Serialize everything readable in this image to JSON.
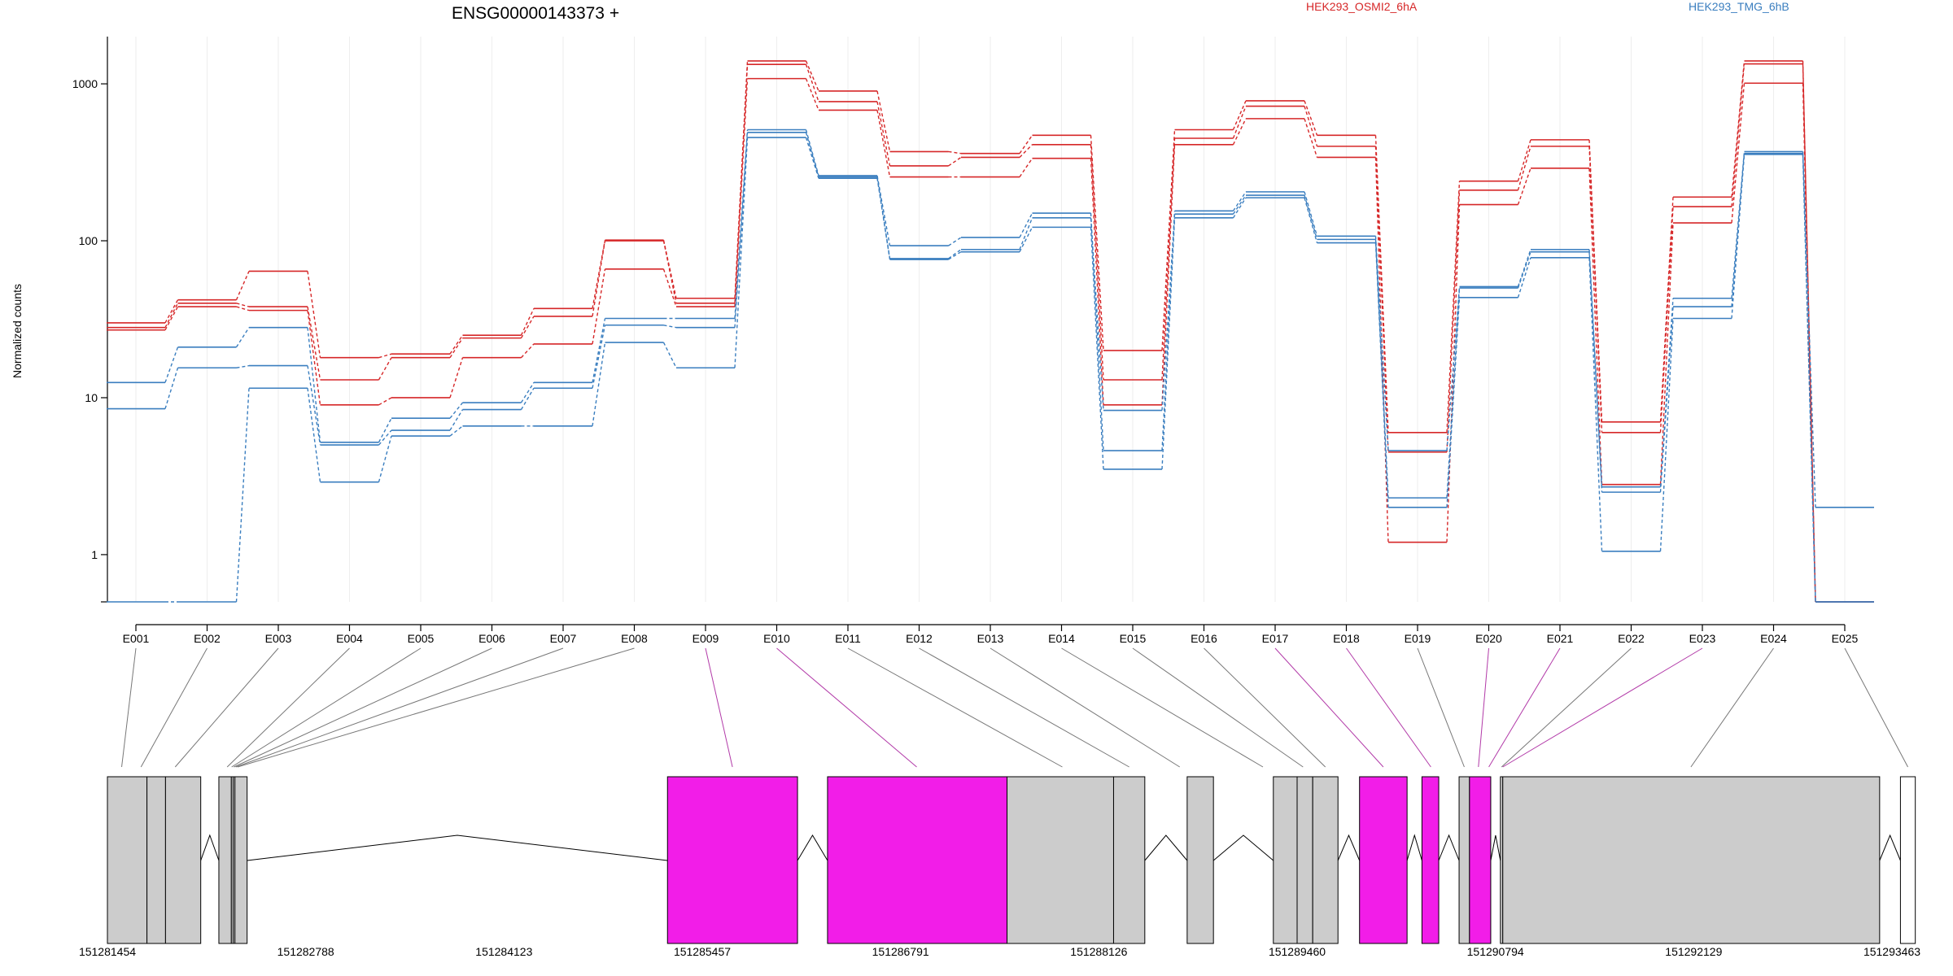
{
  "chart_data": {
    "type": "line",
    "title": "ENSG00000143373 +",
    "ylabel": "Normalized counts",
    "xlabel": "",
    "y_scale": "log",
    "yticks": [
      1,
      10,
      100,
      1000
    ],
    "ylim": [
      0.5,
      2000
    ],
    "grid": "vertical",
    "legend": "top",
    "categories": [
      "E001",
      "E002",
      "E003",
      "E004",
      "E005",
      "E006",
      "E007",
      "E008",
      "E009",
      "E010",
      "E011",
      "E012",
      "E013",
      "E014",
      "E015",
      "E016",
      "E017",
      "E018",
      "E019",
      "E020",
      "E021",
      "E022",
      "E023",
      "E024",
      "E025"
    ],
    "series": [
      {
        "name": "HEK293_OSMI2_6hA",
        "color": "#d62728",
        "style": "solid",
        "values": [
          30,
          42,
          64,
          18,
          19,
          25,
          37,
          101,
          43,
          1400,
          900,
          370,
          360,
          470,
          20,
          510,
          780,
          470,
          6,
          240,
          440,
          7,
          190,
          1400,
          0.5
        ]
      },
      {
        "name": "",
        "color": "#d62728",
        "style": "solid",
        "values": [
          28,
          40,
          38,
          13,
          18,
          24,
          33,
          100,
          40,
          1330,
          770,
          300,
          340,
          410,
          13,
          450,
          720,
          400,
          4.5,
          210,
          400,
          6,
          165,
          1340,
          0.5
        ]
      },
      {
        "name": "",
        "color": "#d62728",
        "style": "solid",
        "values": [
          27,
          38,
          36,
          9,
          10,
          18,
          22,
          66,
          38,
          1080,
          680,
          255,
          255,
          335,
          9,
          410,
          600,
          340,
          1.2,
          170,
          290,
          2.8,
          130,
          1010,
          0.5
        ]
      },
      {
        "name": "HEK293_TMG_6hB",
        "color": "#3a7ebf",
        "style": "solid",
        "values": [
          12.5,
          21,
          28,
          5.2,
          7.4,
          9.3,
          12.5,
          32,
          32,
          510,
          260,
          93,
          105,
          150,
          4.6,
          155,
          205,
          107,
          4.6,
          51,
          88,
          2.7,
          43,
          370,
          2
        ]
      },
      {
        "name": "",
        "color": "#3a7ebf",
        "style": "solid",
        "values": [
          8.5,
          15.5,
          16,
          5,
          6.2,
          8.4,
          11.5,
          29,
          28,
          490,
          255,
          77,
          88,
          140,
          8.3,
          148,
          195,
          102,
          2.3,
          50,
          85,
          2.5,
          38,
          360,
          0.5
        ]
      },
      {
        "name": "",
        "color": "#3a7ebf",
        "style": "solid",
        "values": [
          0.5,
          0.5,
          11.5,
          2.9,
          5.7,
          6.6,
          6.6,
          22.5,
          15.5,
          455,
          250,
          76,
          85,
          122,
          3.5,
          140,
          188,
          97,
          2,
          43.5,
          78,
          1.05,
          32,
          355,
          0.5
        ]
      }
    ],
    "gene_model": {
      "coordinate_ticks": [
        "151281454",
        "151282788",
        "151284123",
        "151285457",
        "151286791",
        "151288126",
        "151289460",
        "151290794",
        "151292129",
        "151293463"
      ],
      "coord_range": [
        151281454,
        151293463
      ],
      "highlight_color": "#f21de8",
      "blocks": [
        {
          "start": 151281454,
          "end": 151281720
        },
        {
          "start": 151281720,
          "end": 151281845
        },
        {
          "start": 151281845,
          "end": 151282082
        },
        {
          "start": 151282204,
          "end": 151282288
        },
        {
          "start": 151282288,
          "end": 151282300
        },
        {
          "start": 151282300,
          "end": 151282312
        },
        {
          "start": 151282312,
          "end": 151282394
        },
        {
          "start": 151285223,
          "end": 151286098,
          "highlight": true
        },
        {
          "start": 151286300,
          "end": 151287508,
          "highlight": true
        },
        {
          "start": 151287508,
          "end": 151288225
        },
        {
          "start": 151288225,
          "end": 151288435
        },
        {
          "start": 151288720,
          "end": 151288897
        },
        {
          "start": 151289300,
          "end": 151289460
        },
        {
          "start": 151289460,
          "end": 151289565
        },
        {
          "start": 151289565,
          "end": 151289735
        },
        {
          "start": 151289880,
          "end": 151290200,
          "highlight": true
        },
        {
          "start": 151290300,
          "end": 151290413,
          "highlight": true
        },
        {
          "start": 151290550,
          "end": 151290620
        },
        {
          "start": 151290620,
          "end": 151290763,
          "highlight": true
        },
        {
          "start": 151290828,
          "end": 151290844
        },
        {
          "start": 151290844,
          "end": 151293380
        },
        {
          "start": 151293520,
          "end": 151293620,
          "white": true
        }
      ],
      "introns": [
        [
          151282082,
          151282204
        ],
        [
          151282394,
          151285223
        ],
        [
          151286098,
          151286300
        ],
        [
          151288435,
          151288720
        ],
        [
          151288897,
          151289300
        ],
        [
          151289735,
          151289880
        ],
        [
          151290200,
          151290300
        ],
        [
          151290413,
          151290550
        ],
        [
          151290763,
          151290828
        ],
        [
          151293380,
          151293520
        ]
      ],
      "exon_links": [
        {
          "exon": "E001",
          "target": 151281550
        },
        {
          "exon": "E002",
          "target": 151281680
        },
        {
          "exon": "E003",
          "target": 151281910
        },
        {
          "exon": "E004",
          "target": 151282260
        },
        {
          "exon": "E005",
          "target": 151282290
        },
        {
          "exon": "E006",
          "target": 151282305
        },
        {
          "exon": "E007",
          "target": 151282318
        },
        {
          "exon": "E008",
          "target": 151282330
        },
        {
          "exon": "E009",
          "target": 151285660,
          "highlight": true
        },
        {
          "exon": "E010",
          "target": 151286900,
          "highlight": true
        },
        {
          "exon": "E011",
          "target": 151287880
        },
        {
          "exon": "E012",
          "target": 151288330
        },
        {
          "exon": "E013",
          "target": 151288670
        },
        {
          "exon": "E014",
          "target": 151289230
        },
        {
          "exon": "E015",
          "target": 151289500
        },
        {
          "exon": "E016",
          "target": 151289650
        },
        {
          "exon": "E017",
          "target": 151290040,
          "highlight": true
        },
        {
          "exon": "E018",
          "target": 151290360,
          "highlight": true
        },
        {
          "exon": "E019",
          "target": 151290585
        },
        {
          "exon": "E020",
          "target": 151290680,
          "highlight": true
        },
        {
          "exon": "E021",
          "target": 151290750,
          "highlight": true
        },
        {
          "exon": "E022",
          "target": 151290836
        },
        {
          "exon": "E023",
          "target": 151290844,
          "highlight": true
        },
        {
          "exon": "E024",
          "target": 151292110
        },
        {
          "exon": "E025",
          "target": 151293570
        }
      ]
    }
  }
}
